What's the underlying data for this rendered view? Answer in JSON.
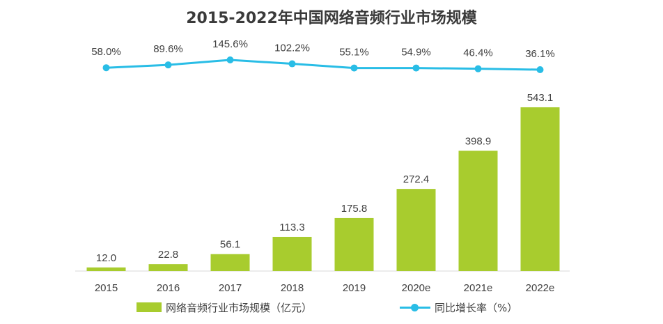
{
  "chart_data": {
    "type": "bar",
    "title": "2015-2022年中国网络音频行业市场规模",
    "categories": [
      "2015",
      "2016",
      "2017",
      "2018",
      "2019",
      "2020e",
      "2021e",
      "2022e"
    ],
    "series": [
      {
        "name": "网络音频行业市场规模（亿元）",
        "type": "bar",
        "values": [
          12.0,
          22.8,
          56.1,
          113.3,
          175.8,
          272.4,
          398.9,
          543.1
        ],
        "labels": [
          "12.0",
          "22.8",
          "56.1",
          "113.3",
          "175.8",
          "272.4",
          "398.9",
          "543.1"
        ],
        "color": "#a8cc2e"
      },
      {
        "name": "同比增长率（%）",
        "type": "line",
        "values": [
          58.0,
          89.6,
          145.6,
          102.2,
          55.1,
          54.9,
          46.4,
          36.1
        ],
        "labels": [
          "58.0%",
          "89.6%",
          "145.6%",
          "102.2%",
          "55.1%",
          "54.9%",
          "46.4%",
          "36.1%"
        ],
        "color": "#29bde6"
      }
    ],
    "colors": {
      "axis": "#d9d9d9",
      "text": "#404040",
      "title": "#3a3a3a"
    },
    "legend_position": "bottom",
    "grid": false
  }
}
